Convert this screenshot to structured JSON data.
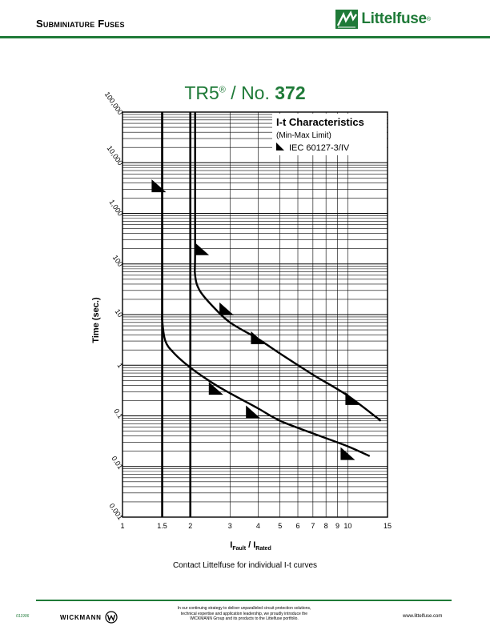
{
  "header": {
    "section_title": "Subminiature Fuses",
    "brand": "Littelfuse",
    "brand_mark": "®",
    "brand_color": "#1f7a38"
  },
  "chart_title": {
    "prefix": "TR5",
    "reg": "®",
    "mid": " / No. ",
    "number": "372"
  },
  "chart_data": {
    "type": "line",
    "legend": {
      "title": "I-t Characteristics",
      "subtitle": "(Min-Max Limit)",
      "standard": "IEC 60127-3/IV"
    },
    "ylabel": "Time (sec.)",
    "xlabel_main": "I",
    "xlabel_sub1": "Fault",
    "xlabel_sep": " / I",
    "xlabel_sub2": "Rated",
    "xscale": "log",
    "yscale": "log",
    "xlim": [
      1,
      15
    ],
    "ylim": [
      0.001,
      100000
    ],
    "x_ticks": [
      "1",
      "1.5",
      "2",
      "3",
      "4",
      "5",
      "6",
      "7",
      "8",
      "9",
      "10",
      "15"
    ],
    "y_ticks": [
      "0.001",
      "0.01",
      "0.1",
      "1",
      "10",
      "100",
      "1,000",
      "10,000",
      "100,000"
    ],
    "series": [
      {
        "name": "Min",
        "points": [
          [
            1.5,
            100000
          ],
          [
            1.5,
            20
          ],
          [
            1.5,
            8
          ],
          [
            1.55,
            3
          ],
          [
            1.7,
            1.7
          ],
          [
            2.0,
            0.9
          ],
          [
            2.5,
            0.45
          ],
          [
            3.0,
            0.28
          ],
          [
            4.0,
            0.14
          ],
          [
            5.0,
            0.08
          ],
          [
            7.0,
            0.045
          ],
          [
            10.0,
            0.025
          ],
          [
            12.5,
            0.016
          ]
        ]
      },
      {
        "name": "Max",
        "points": [
          [
            2.1,
            100000
          ],
          [
            2.1,
            200
          ],
          [
            2.1,
            60
          ],
          [
            2.2,
            30
          ],
          [
            2.5,
            15
          ],
          [
            3.0,
            7
          ],
          [
            4.0,
            3.3
          ],
          [
            5.0,
            1.7
          ],
          [
            7.0,
            0.65
          ],
          [
            10.0,
            0.25
          ],
          [
            14.0,
            0.08
          ]
        ]
      }
    ],
    "markers": [
      {
        "x": 1.45,
        "y": 3500
      },
      {
        "x": 2.25,
        "y": 200
      },
      {
        "x": 2.9,
        "y": 13
      },
      {
        "x": 4.0,
        "y": 3.5
      },
      {
        "x": 10.5,
        "y": 0.22
      },
      {
        "x": 2.6,
        "y": 0.35
      },
      {
        "x": 3.8,
        "y": 0.12
      },
      {
        "x": 10.0,
        "y": 0.018
      }
    ],
    "grid": true
  },
  "contact_note": "Contact Littelfuse for individual I-t curves",
  "footer": {
    "doc_code": "011906",
    "wickmann": "WICKMANN",
    "note_line1": "In our continuing strategy to deliver unparalleled circuit protection solutions,",
    "note_line2": "technical expertise and application leadership, we proudly introduce the",
    "note_line3": "WICKMANN Group and its products to the Littelfuse portfolio.",
    "url": "www.littelfuse.com"
  }
}
